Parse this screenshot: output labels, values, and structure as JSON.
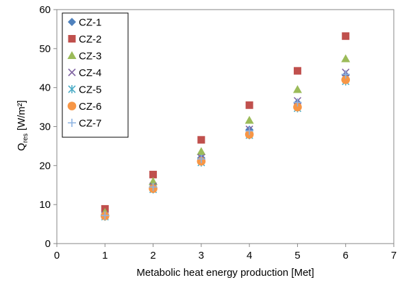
{
  "chart_data": {
    "type": "scatter",
    "xlabel": "Metabolic heat energy production [Met]",
    "ylabel_main": "Q",
    "ylabel_sub": "res",
    "ylabel_unit": " [W/m²]",
    "xlim": [
      0,
      7
    ],
    "ylim": [
      0,
      60
    ],
    "xticks": [
      0,
      1,
      2,
      3,
      4,
      5,
      6,
      7
    ],
    "yticks": [
      0,
      10,
      20,
      30,
      40,
      50,
      60
    ],
    "grid": false,
    "legend_position": "top-left",
    "x": [
      1,
      2,
      3,
      4,
      5,
      6
    ],
    "series": [
      {
        "name": "CZ-1",
        "marker": "diamond",
        "color": "#4f81bd",
        "values": [
          7.6,
          15.1,
          22.0,
          29.2,
          36.1,
          43.2
        ]
      },
      {
        "name": "CZ-2",
        "marker": "square",
        "color": "#c0504d",
        "values": [
          8.9,
          17.7,
          26.6,
          35.5,
          44.3,
          53.2
        ]
      },
      {
        "name": "CZ-3",
        "marker": "triangle",
        "color": "#9bbb59",
        "values": [
          8.0,
          15.9,
          23.6,
          31.6,
          39.5,
          47.4
        ]
      },
      {
        "name": "CZ-4",
        "marker": "x",
        "color": "#8064a2",
        "values": [
          7.3,
          14.7,
          22.0,
          29.3,
          36.6,
          43.9
        ]
      },
      {
        "name": "CZ-5",
        "marker": "star",
        "color": "#4bacc6",
        "values": [
          6.9,
          13.9,
          20.8,
          27.8,
          34.7,
          41.6
        ]
      },
      {
        "name": "CZ-6",
        "marker": "circle",
        "color": "#f79646",
        "values": [
          7.1,
          14.1,
          21.1,
          28.0,
          35.0,
          42.0
        ]
      },
      {
        "name": "CZ-7",
        "marker": "plus",
        "color": "#8db3e2",
        "values": [
          7.2,
          14.5,
          21.7,
          28.9,
          36.2,
          43.4
        ]
      }
    ]
  }
}
